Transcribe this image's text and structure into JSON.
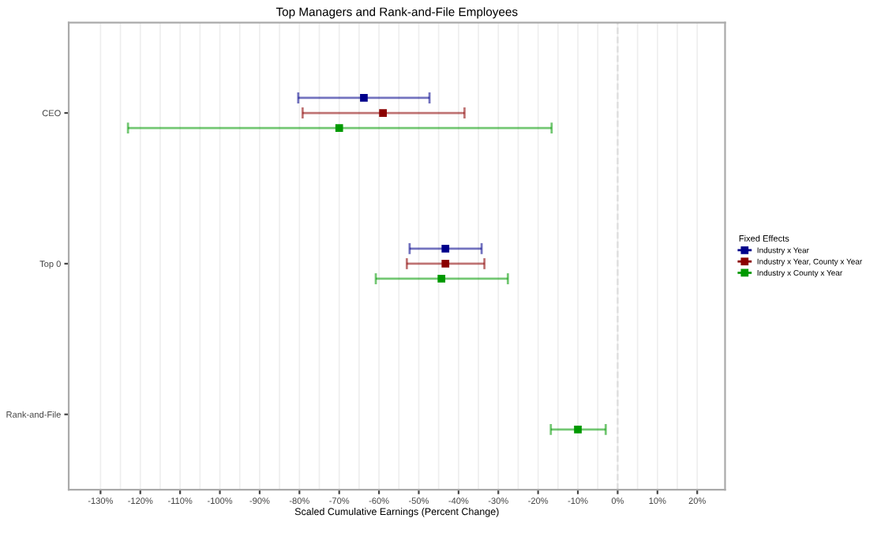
{
  "chart_data": {
    "type": "scatter",
    "orientation": "horizontal",
    "title": "Top Managers and Rank-and-File Employees",
    "xlabel": "Scaled Cumulative Earnings (Percent Change)",
    "legend_title": "Fixed Effects",
    "categories": [
      "CEO",
      "Top 0",
      "Rank-and-File"
    ],
    "series": [
      {
        "name": "Industry x Year",
        "color": "#00008b",
        "values": [
          -63.8,
          -43.3,
          null
        ],
        "errors": [
          [
            -80.3,
            -47.3
          ],
          [
            -52.3,
            -34.2
          ],
          null
        ]
      },
      {
        "name": "Industry x Year, County x Year",
        "color": "#8b0000",
        "values": [
          -59.0,
          -43.3,
          null
        ],
        "errors": [
          [
            -79.2,
            -38.5
          ],
          [
            -53.0,
            -33.5
          ],
          null
        ]
      },
      {
        "name": "Industry x County x Year",
        "color": "#009900",
        "values": [
          -70.0,
          -44.3,
          -10.0
        ],
        "errors": [
          [
            -123.1,
            -16.6
          ],
          [
            -60.8,
            -27.6
          ],
          [
            -16.8,
            -3.0
          ]
        ]
      }
    ],
    "xlim": [
      -138,
      27
    ],
    "xticks": [
      {
        "value": -130,
        "label": "-130%"
      },
      {
        "value": -120,
        "label": "-120%"
      },
      {
        "value": -110,
        "label": "-110%"
      },
      {
        "value": -100,
        "label": "-100%"
      },
      {
        "value": -90,
        "label": "-90%"
      },
      {
        "value": -80,
        "label": "-80%"
      },
      {
        "value": -70,
        "label": "-70%"
      },
      {
        "value": -60,
        "label": "-60%"
      },
      {
        "value": -50,
        "label": "-50%"
      },
      {
        "value": -40,
        "label": "-40%"
      },
      {
        "value": -30,
        "label": "-30%"
      },
      {
        "value": -20,
        "label": "-20%"
      },
      {
        "value": -10,
        "label": "-10%"
      },
      {
        "value": 0,
        "label": "0%"
      },
      {
        "value": 10,
        "label": "10%"
      },
      {
        "value": 20,
        "label": "20%"
      }
    ],
    "ref_lines": [
      {
        "axis": "x",
        "value": 0,
        "color": "#dddddd",
        "line_style": "dashed"
      }
    ],
    "grid": "x",
    "legend": "right",
    "marker": "square"
  }
}
